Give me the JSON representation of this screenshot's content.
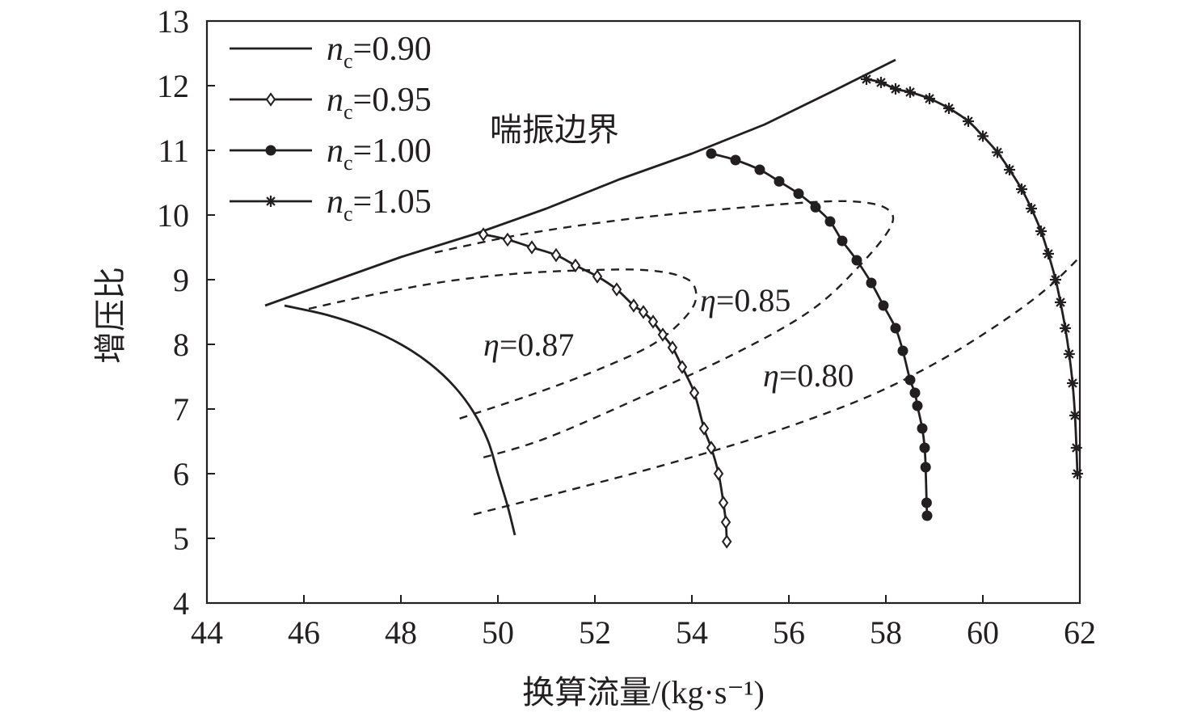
{
  "chart_data": {
    "type": "line",
    "xlabel": "换算流量/(kg·s⁻¹)",
    "ylabel": "增压比",
    "xlim": [
      44,
      62
    ],
    "ylim": [
      4,
      13
    ],
    "xticks": [
      44,
      46,
      48,
      50,
      52,
      54,
      56,
      58,
      60,
      62
    ],
    "yticks": [
      4,
      5,
      6,
      7,
      8,
      9,
      10,
      11,
      12,
      13
    ],
    "grid": false,
    "legend_position": "top-left",
    "series": [
      {
        "name": "nc=0.90",
        "name_main": "n",
        "name_sub": "c",
        "name_value": "=0.90",
        "marker": "none",
        "x": [
          45.6,
          46.5,
          47.3,
          48.0,
          48.6,
          49.1,
          49.5,
          49.8,
          50.0,
          50.2,
          50.35
        ],
        "y": [
          8.6,
          8.45,
          8.25,
          8.0,
          7.7,
          7.35,
          6.95,
          6.5,
          6.0,
          5.5,
          5.05
        ]
      },
      {
        "name": "nc=0.95",
        "name_main": "n",
        "name_sub": "c",
        "name_value": "=0.95",
        "marker": "diamond",
        "x": [
          49.7,
          50.2,
          50.7,
          51.2,
          51.6,
          52.05,
          52.45,
          52.8,
          53.0,
          53.2,
          53.4,
          53.6,
          53.8,
          54.05,
          54.25,
          54.4,
          54.55,
          54.65,
          54.7,
          54.72
        ],
        "y": [
          9.7,
          9.62,
          9.5,
          9.38,
          9.22,
          9.05,
          8.85,
          8.6,
          8.5,
          8.35,
          8.15,
          7.95,
          7.65,
          7.25,
          6.7,
          6.4,
          6.0,
          5.55,
          5.25,
          4.95
        ]
      },
      {
        "name": "nc=1.00",
        "name_main": "n",
        "name_sub": "c",
        "name_value": "=1.00",
        "marker": "circle",
        "x": [
          54.4,
          54.9,
          55.4,
          55.8,
          56.2,
          56.55,
          56.85,
          57.1,
          57.4,
          57.7,
          57.95,
          58.2,
          58.35,
          58.5,
          58.6,
          58.65,
          58.75,
          58.8,
          58.82,
          58.84,
          58.85
        ],
        "y": [
          10.95,
          10.85,
          10.7,
          10.52,
          10.33,
          10.12,
          9.9,
          9.6,
          9.3,
          8.95,
          8.6,
          8.25,
          7.9,
          7.45,
          7.25,
          7.05,
          6.7,
          6.4,
          6.1,
          5.55,
          5.35
        ]
      },
      {
        "name": "nc=1.05",
        "name_main": "n",
        "name_sub": "c",
        "name_value": "=1.05",
        "marker": "asterisk",
        "x": [
          57.6,
          57.9,
          58.2,
          58.5,
          58.9,
          59.3,
          59.7,
          60.0,
          60.3,
          60.55,
          60.8,
          61.0,
          61.2,
          61.35,
          61.5,
          61.6,
          61.7,
          61.78,
          61.85,
          61.9,
          61.93,
          61.95
        ],
        "y": [
          12.1,
          12.05,
          11.95,
          11.9,
          11.8,
          11.65,
          11.45,
          11.22,
          10.97,
          10.7,
          10.4,
          10.1,
          9.75,
          9.4,
          9.0,
          8.65,
          8.25,
          7.85,
          7.4,
          6.9,
          6.4,
          6.0
        ]
      }
    ],
    "surge_line": {
      "x": [
        45.2,
        46.5,
        48.0,
        49.5,
        51.0,
        52.5,
        54.0,
        55.5,
        57.0,
        58.2
      ],
      "y": [
        8.6,
        8.95,
        9.35,
        9.7,
        10.1,
        10.55,
        10.95,
        11.4,
        11.95,
        12.4
      ]
    },
    "efficiency_contours": [
      {
        "label": "η=0.87",
        "x": [
          46.1,
          47.5,
          49.0,
          50.5,
          52.0,
          53.0,
          53.7,
          54.05,
          54.0,
          53.3,
          52.2,
          50.8,
          49.2
        ],
        "y": [
          8.55,
          8.78,
          8.98,
          9.1,
          9.15,
          9.15,
          9.07,
          8.9,
          8.55,
          8.05,
          7.65,
          7.25,
          6.85
        ]
      },
      {
        "label": "η=0.85",
        "x": [
          48.7,
          50.5,
          52.5,
          54.5,
          56.5,
          57.5,
          58.05,
          58.1,
          57.5,
          56.5,
          55.0,
          53.0,
          51.0,
          49.7
        ],
        "y": [
          9.42,
          9.7,
          9.92,
          10.08,
          10.2,
          10.2,
          10.08,
          9.82,
          9.25,
          8.55,
          7.9,
          7.2,
          6.55,
          6.25
        ]
      },
      {
        "label": "η=0.80",
        "x": [
          49.5,
          51.5,
          53.5,
          55.5,
          57.5,
          59.0,
          60.3,
          61.3,
          62.0
        ],
        "y": [
          5.37,
          5.75,
          6.15,
          6.6,
          7.15,
          7.7,
          8.3,
          8.85,
          9.35
        ]
      }
    ],
    "annotations": {
      "surge_label": "喘振边界",
      "eta_087_value": "=0.87",
      "eta_085_value": "=0.85",
      "eta_080_value": "=0.80",
      "eta_symbol": "η"
    }
  }
}
